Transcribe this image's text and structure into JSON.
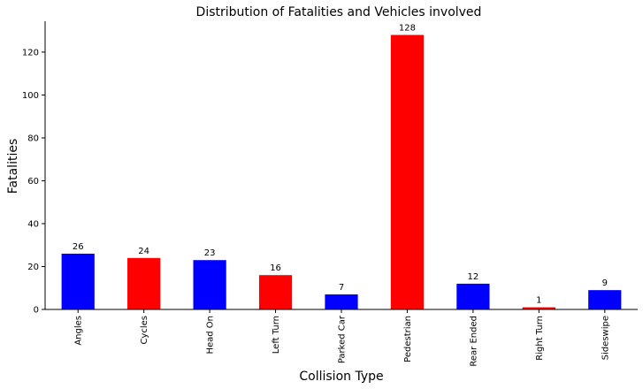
{
  "chart_data": {
    "type": "bar",
    "title": "Distribution of Fatalities and Vehicles involved",
    "xlabel": "Collision Type",
    "ylabel": "Fatalities",
    "categories": [
      "Angles",
      "Cycles",
      "Head On",
      "Left Turn",
      "Parked Car",
      "Pedestrian",
      "Rear Ended",
      "Right Turn",
      "Sideswipe"
    ],
    "values": [
      26,
      24,
      23,
      16,
      7,
      128,
      12,
      1,
      9
    ],
    "bar_colors": [
      "#0000ff",
      "#ff0000",
      "#0000ff",
      "#ff0000",
      "#0000ff",
      "#ff0000",
      "#0000ff",
      "#ff0000",
      "#0000ff"
    ],
    "ylim": [
      0,
      134.4
    ],
    "yticks": [
      0,
      20,
      40,
      60,
      80,
      100,
      120
    ],
    "grid": false,
    "data_labels": true
  }
}
